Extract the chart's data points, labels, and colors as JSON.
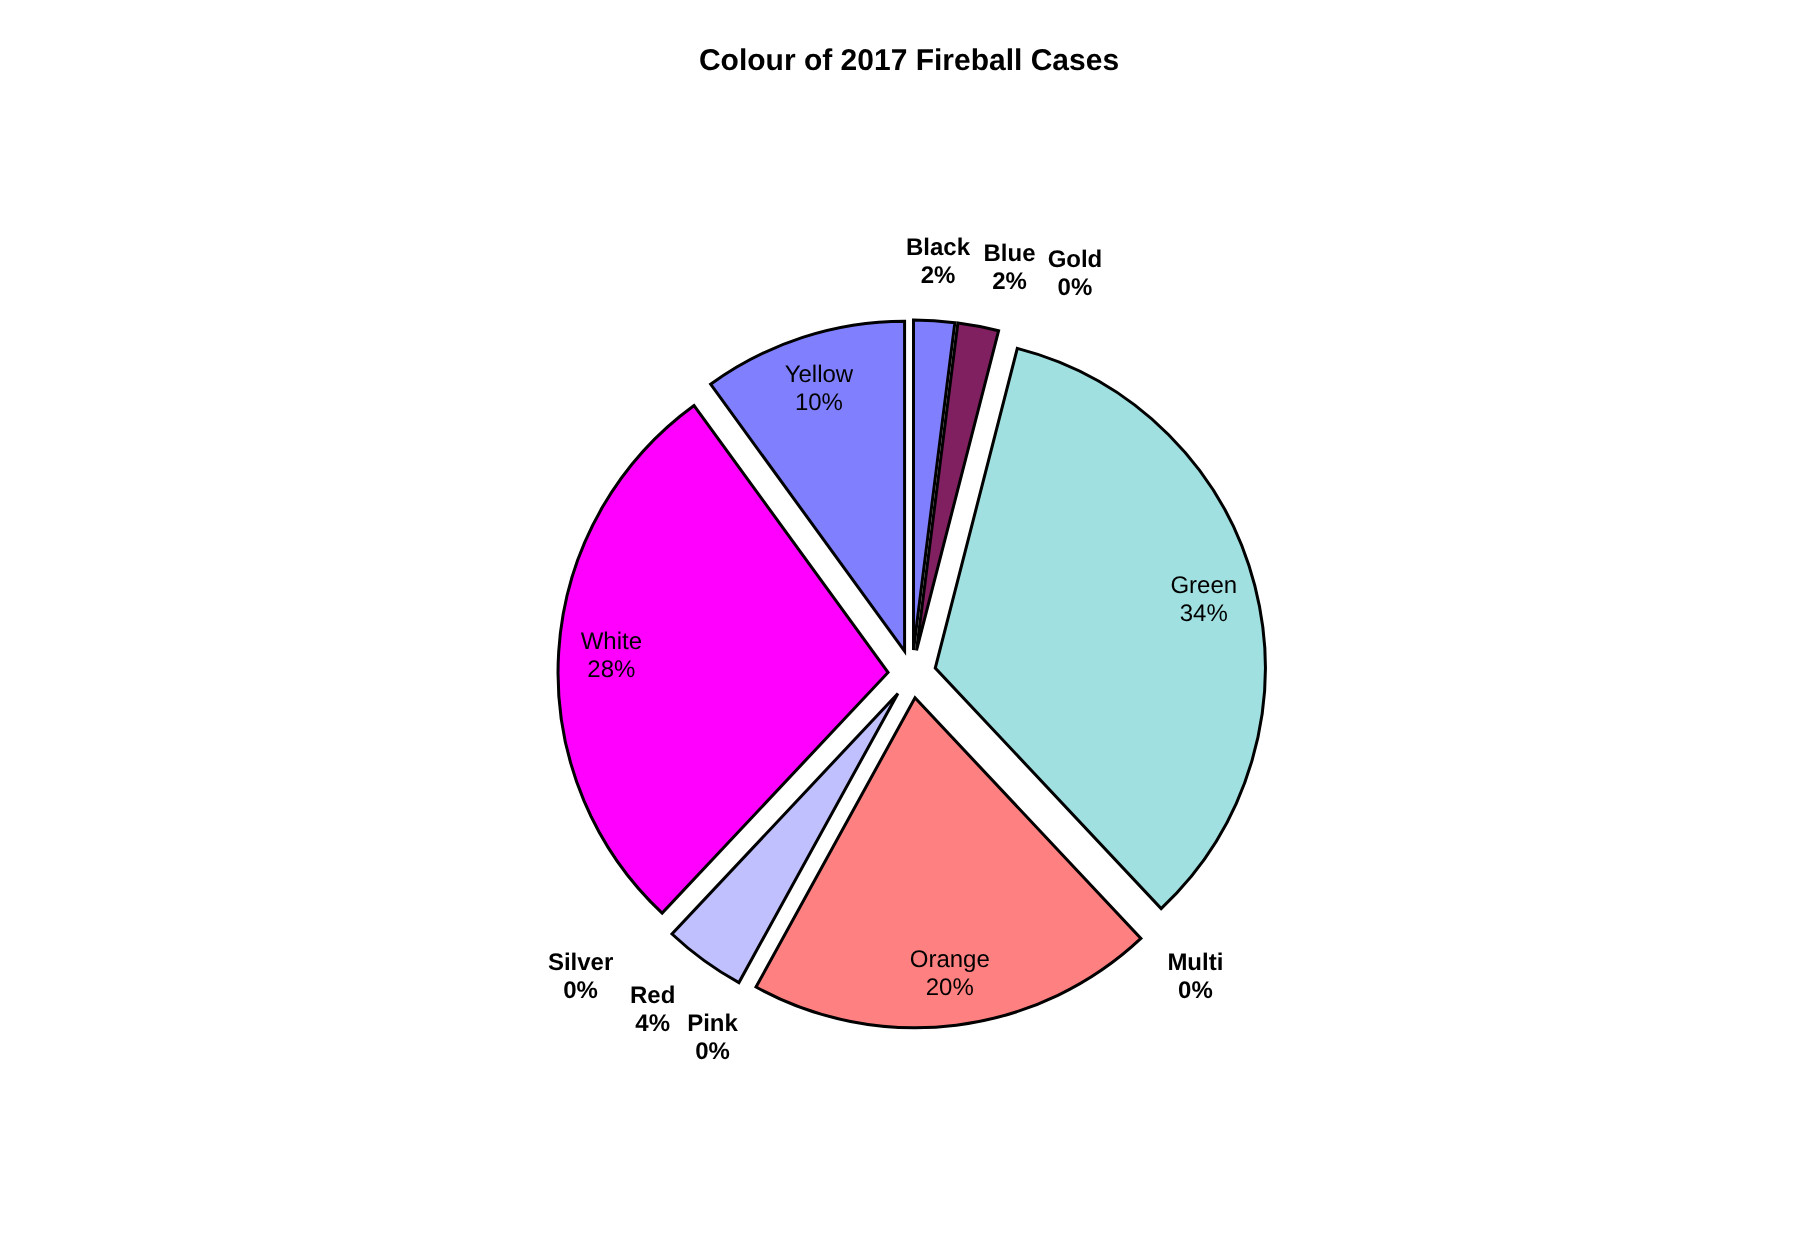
{
  "chart_data": {
    "type": "pie",
    "title": "Colour of 2017 Fireball Cases",
    "categories": [
      "Black",
      "Blue",
      "Gold",
      "Green",
      "Multi",
      "Orange",
      "Pink",
      "Red",
      "Silver",
      "White",
      "Yellow"
    ],
    "values": [
      2,
      2,
      0,
      34,
      0,
      20,
      0,
      4,
      0,
      28,
      10
    ],
    "value_labels": [
      "2%",
      "2%",
      "0%",
      "34%",
      "0%",
      "20%",
      "0%",
      "4%",
      "0%",
      "28%",
      "10%"
    ],
    "colors": [
      "#8080ff",
      "#802060",
      null,
      "#a0e0e0",
      null,
      "#ff8080",
      null,
      "#c0c0ff",
      null,
      "#ff00ff",
      "#8080ff"
    ]
  }
}
